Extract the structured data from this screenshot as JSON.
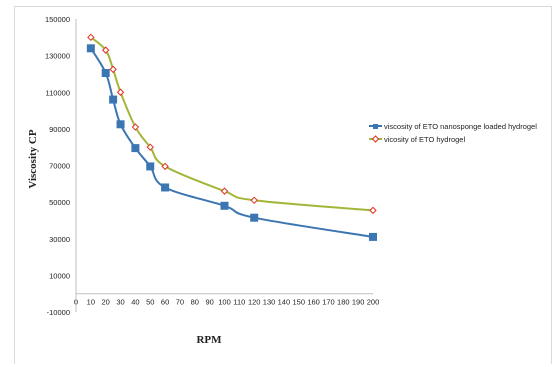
{
  "chart_data": {
    "type": "line",
    "xlabel": "RPM",
    "ylabel": "Viscosity CP",
    "xlim": [
      0,
      200
    ],
    "ylim": [
      -10000,
      150000
    ],
    "x_ticks": [
      "0",
      "10",
      "20",
      "30",
      "40",
      "50",
      "60",
      "70",
      "80",
      "90",
      "100",
      "110",
      "120",
      "130",
      "140",
      "150",
      "160",
      "170",
      "180",
      "190",
      "200"
    ],
    "y_ticks": [
      "150000",
      "130000",
      "110000",
      "90000",
      "70000",
      "50000",
      "30000",
      "10000",
      "-10000"
    ],
    "grid": false,
    "legend_position": "right",
    "series": [
      {
        "name": "viscosity of ETO nanosponge loaded hydrogel",
        "color": "#3b76b3",
        "marker": "square",
        "x": [
          10,
          20,
          25,
          30,
          40,
          50,
          60,
          100,
          120,
          200
        ],
        "y": [
          134000,
          120500,
          106000,
          92500,
          79500,
          69500,
          58000,
          48000,
          41500,
          31000
        ]
      },
      {
        "name": "vicosity of ETO hydrogel",
        "color": "#a4b639",
        "marker_color": "#e0301e",
        "marker": "diamond",
        "x": [
          10,
          20,
          25,
          30,
          40,
          50,
          60,
          100,
          120,
          200
        ],
        "y": [
          140000,
          133000,
          122500,
          110000,
          91000,
          80000,
          69500,
          56000,
          51000,
          45500
        ]
      }
    ]
  }
}
